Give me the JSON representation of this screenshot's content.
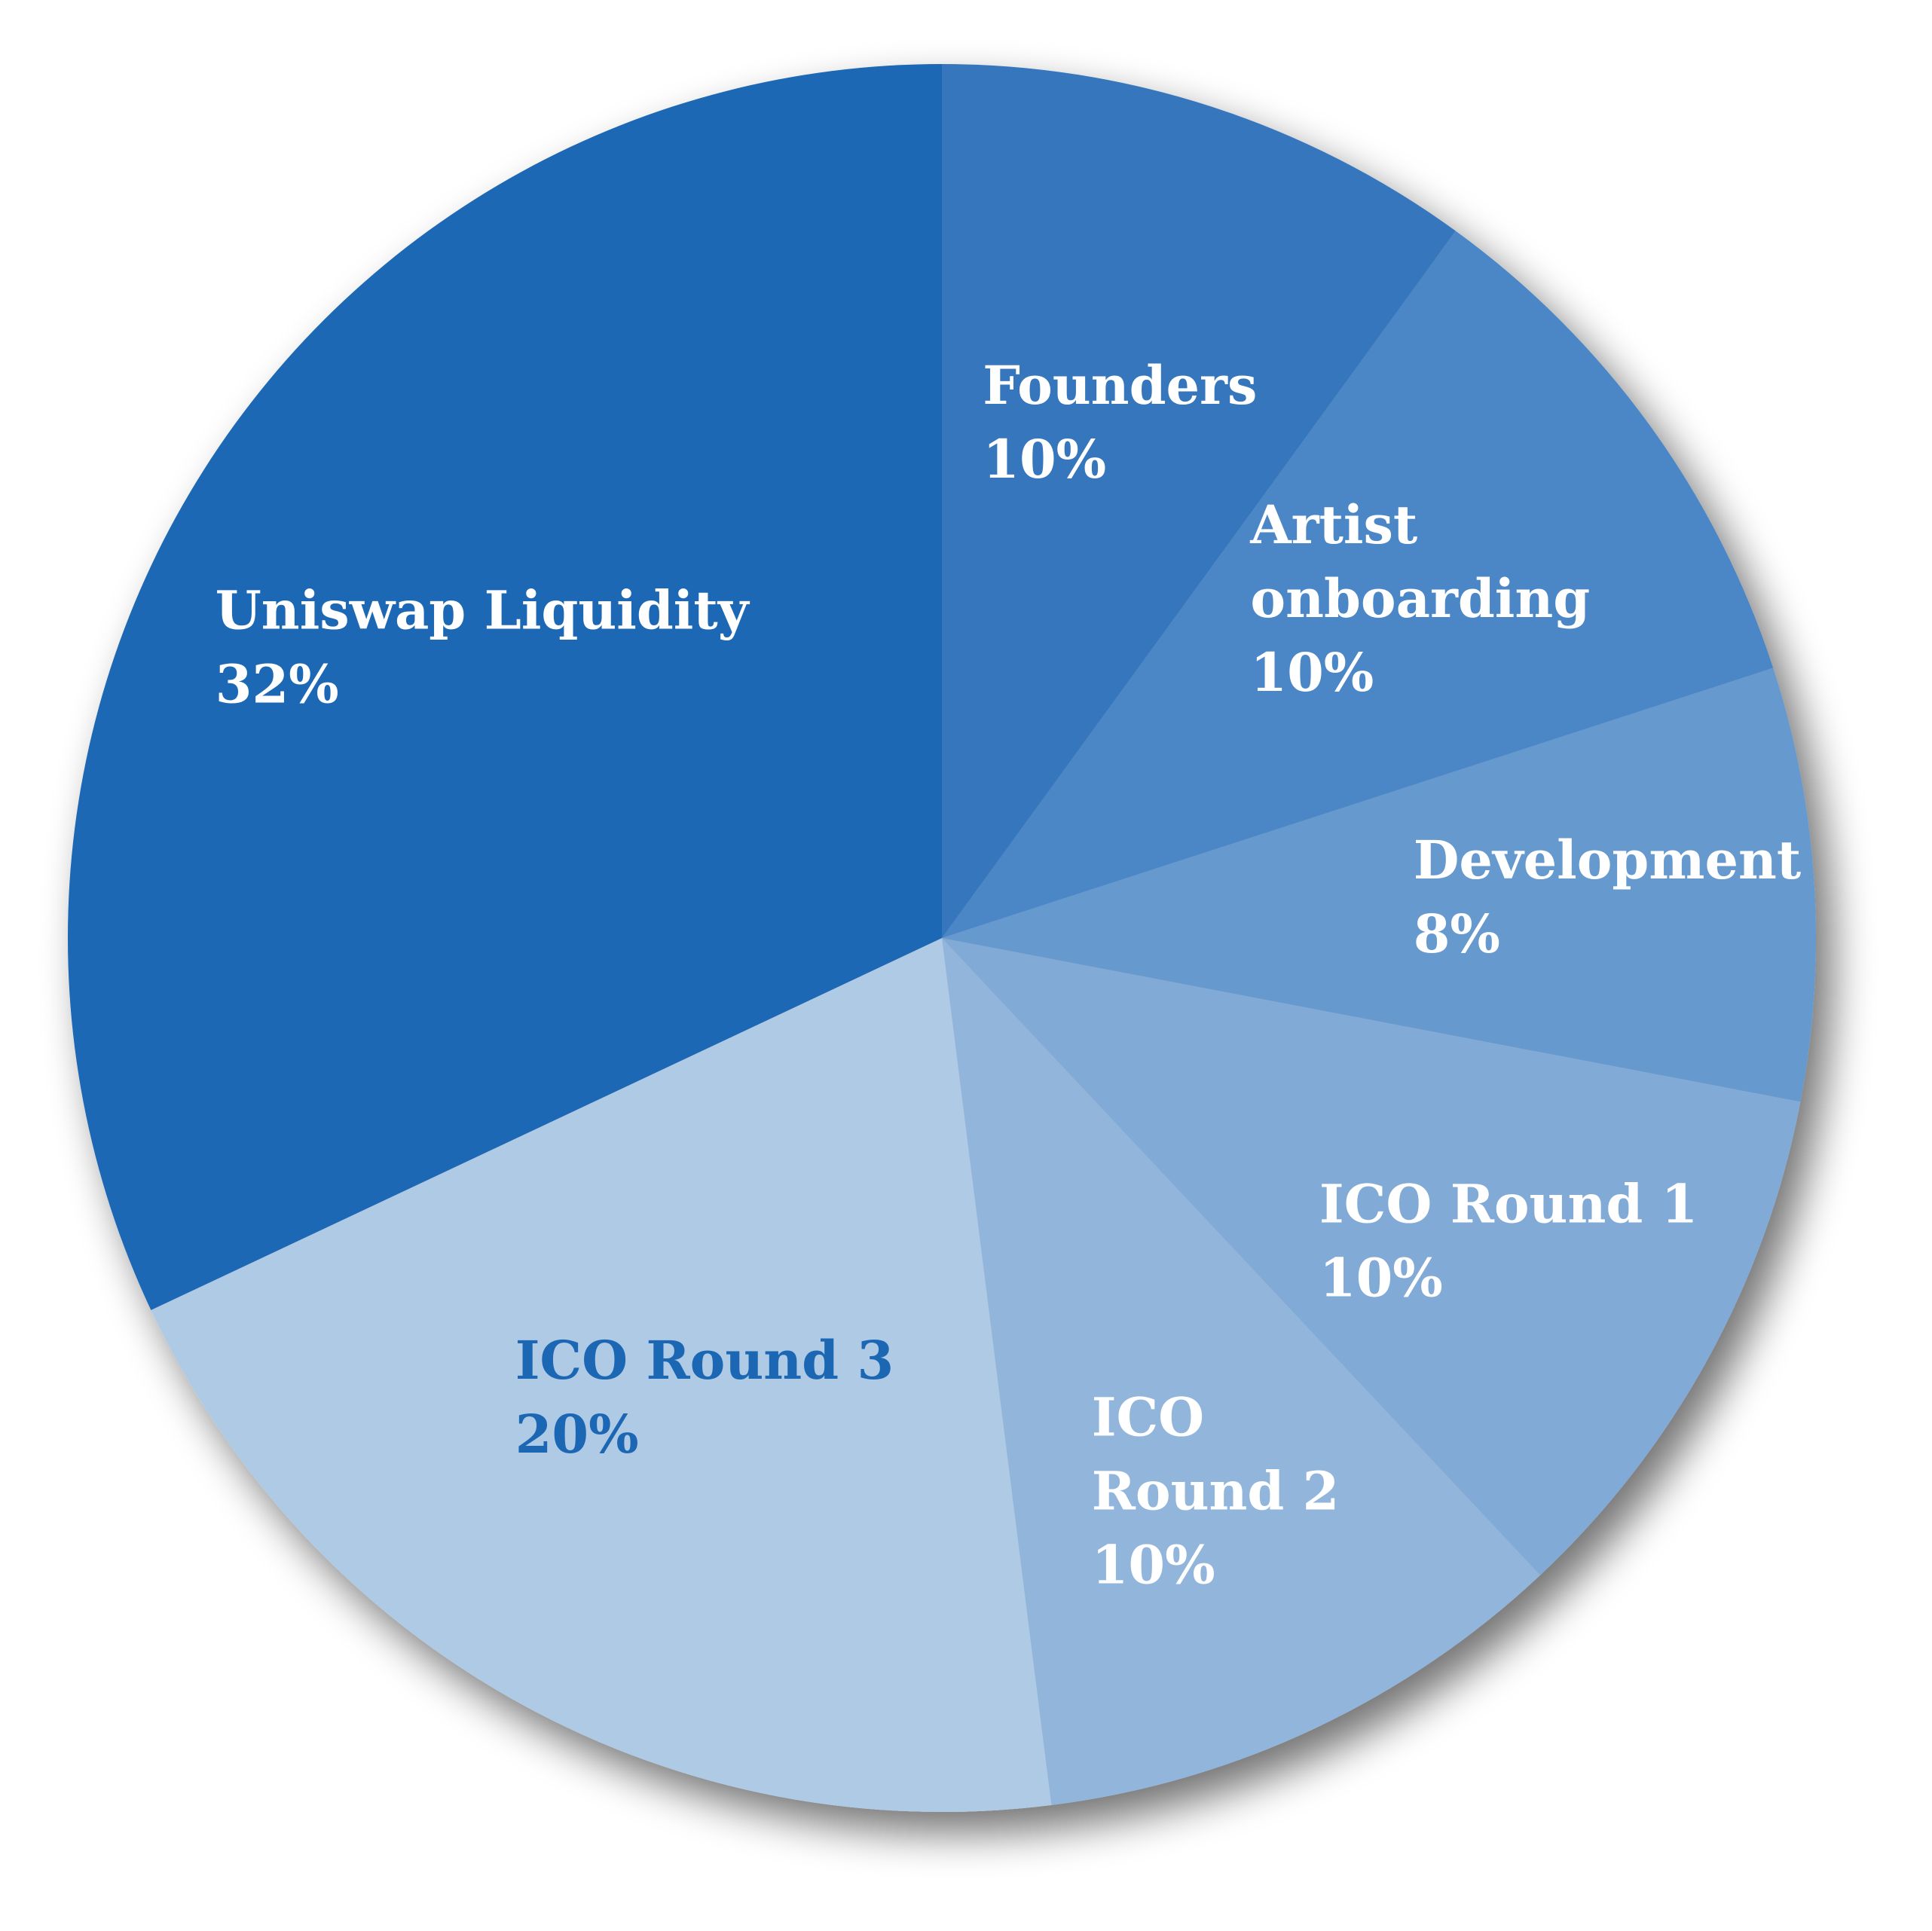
{
  "chart_data": {
    "type": "pie",
    "title": "",
    "slices": [
      {
        "label_lines": [
          "Founders"
        ],
        "value_label": "10%",
        "value": 10,
        "color": "#3576BD",
        "label_color": "#FFFFFF"
      },
      {
        "label_lines": [
          "Artist",
          "onboarding"
        ],
        "value_label": "10%",
        "value": 10,
        "color": "#4B87C6",
        "label_color": "#FFFFFF"
      },
      {
        "label_lines": [
          "Development"
        ],
        "value_label": "8%",
        "value": 8,
        "color": "#6699CE",
        "label_color": "#FFFFFF"
      },
      {
        "label_lines": [
          "ICO Round 1"
        ],
        "value_label": "10%",
        "value": 10,
        "color": "#82AAD6",
        "label_color": "#FFFFFF"
      },
      {
        "label_lines": [
          "ICO",
          "Round 2"
        ],
        "value_label": "10%",
        "value": 10,
        "color": "#92B5DC",
        "label_color": "#FFFFFF"
      },
      {
        "label_lines": [
          "ICO Round 3"
        ],
        "value_label": "20%",
        "value": 20,
        "color": "#AFCAE5",
        "label_color": "#1C67B4"
      },
      {
        "label_lines": [
          "Uniswap Liquidity"
        ],
        "value_label": "32%",
        "value": 32,
        "color": "#1C67B4",
        "label_color": "#FFFFFF"
      }
    ],
    "legend": "none"
  }
}
